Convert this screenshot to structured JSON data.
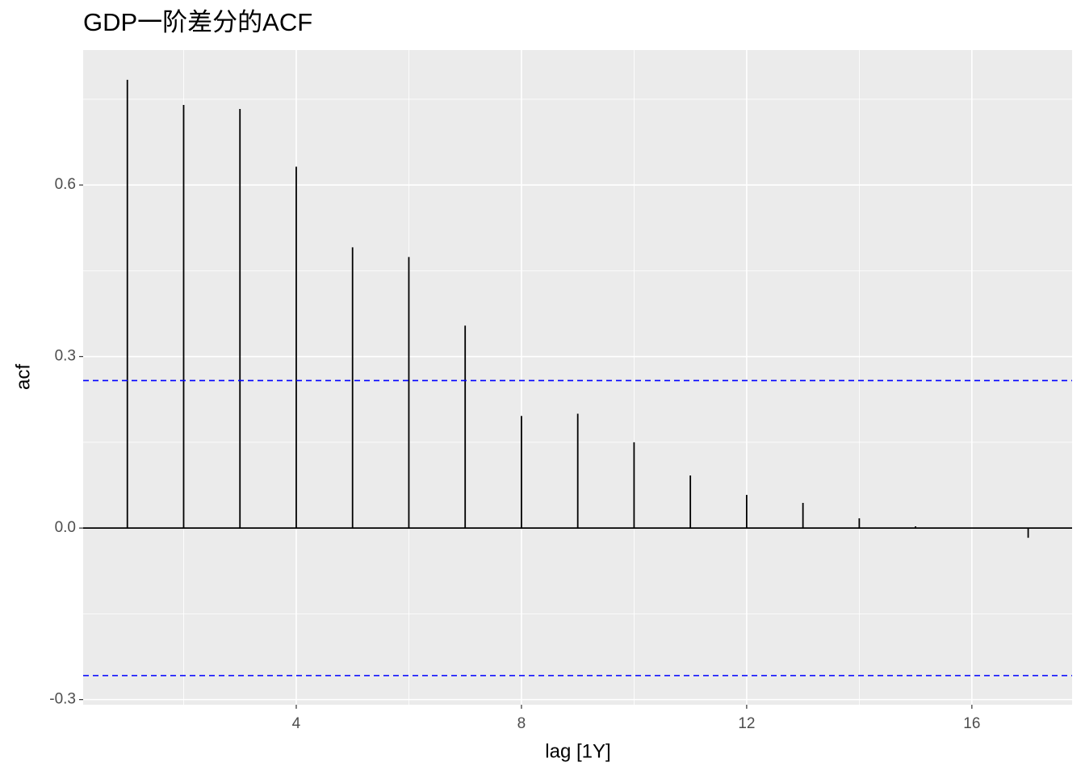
{
  "chart_data": {
    "type": "acf",
    "title": "GDP一阶差分的ACF",
    "x_label": "lag [1Y]",
    "y_label": "acf",
    "x": [
      1,
      2,
      3,
      4,
      5,
      6,
      7,
      8,
      9,
      10,
      11,
      12,
      13,
      14,
      15,
      16,
      17
    ],
    "values": [
      0.784,
      0.74,
      0.733,
      0.632,
      0.491,
      0.474,
      0.354,
      0.196,
      0.2,
      0.15,
      0.092,
      0.058,
      0.044,
      0.017,
      0.003,
      0.0,
      -0.017
    ],
    "color": "#000000",
    "ci_lines": [
      0.258,
      -0.258
    ],
    "ci_color": "#0000ff",
    "xlim": [
      0.215,
      17.78
    ],
    "ylim": [
      -0.309,
      0.836
    ],
    "xticks": [
      4,
      8,
      12,
      16
    ],
    "yticks": [
      -0.3,
      {
        "value": 0,
        "label": "0.0"
      },
      0.3,
      0.6
    ],
    "minor_xticks": [
      2,
      6,
      10,
      14
    ],
    "minor_yticks": [
      -0.15,
      0.15,
      0.45,
      0.75
    ],
    "grid": true
  }
}
